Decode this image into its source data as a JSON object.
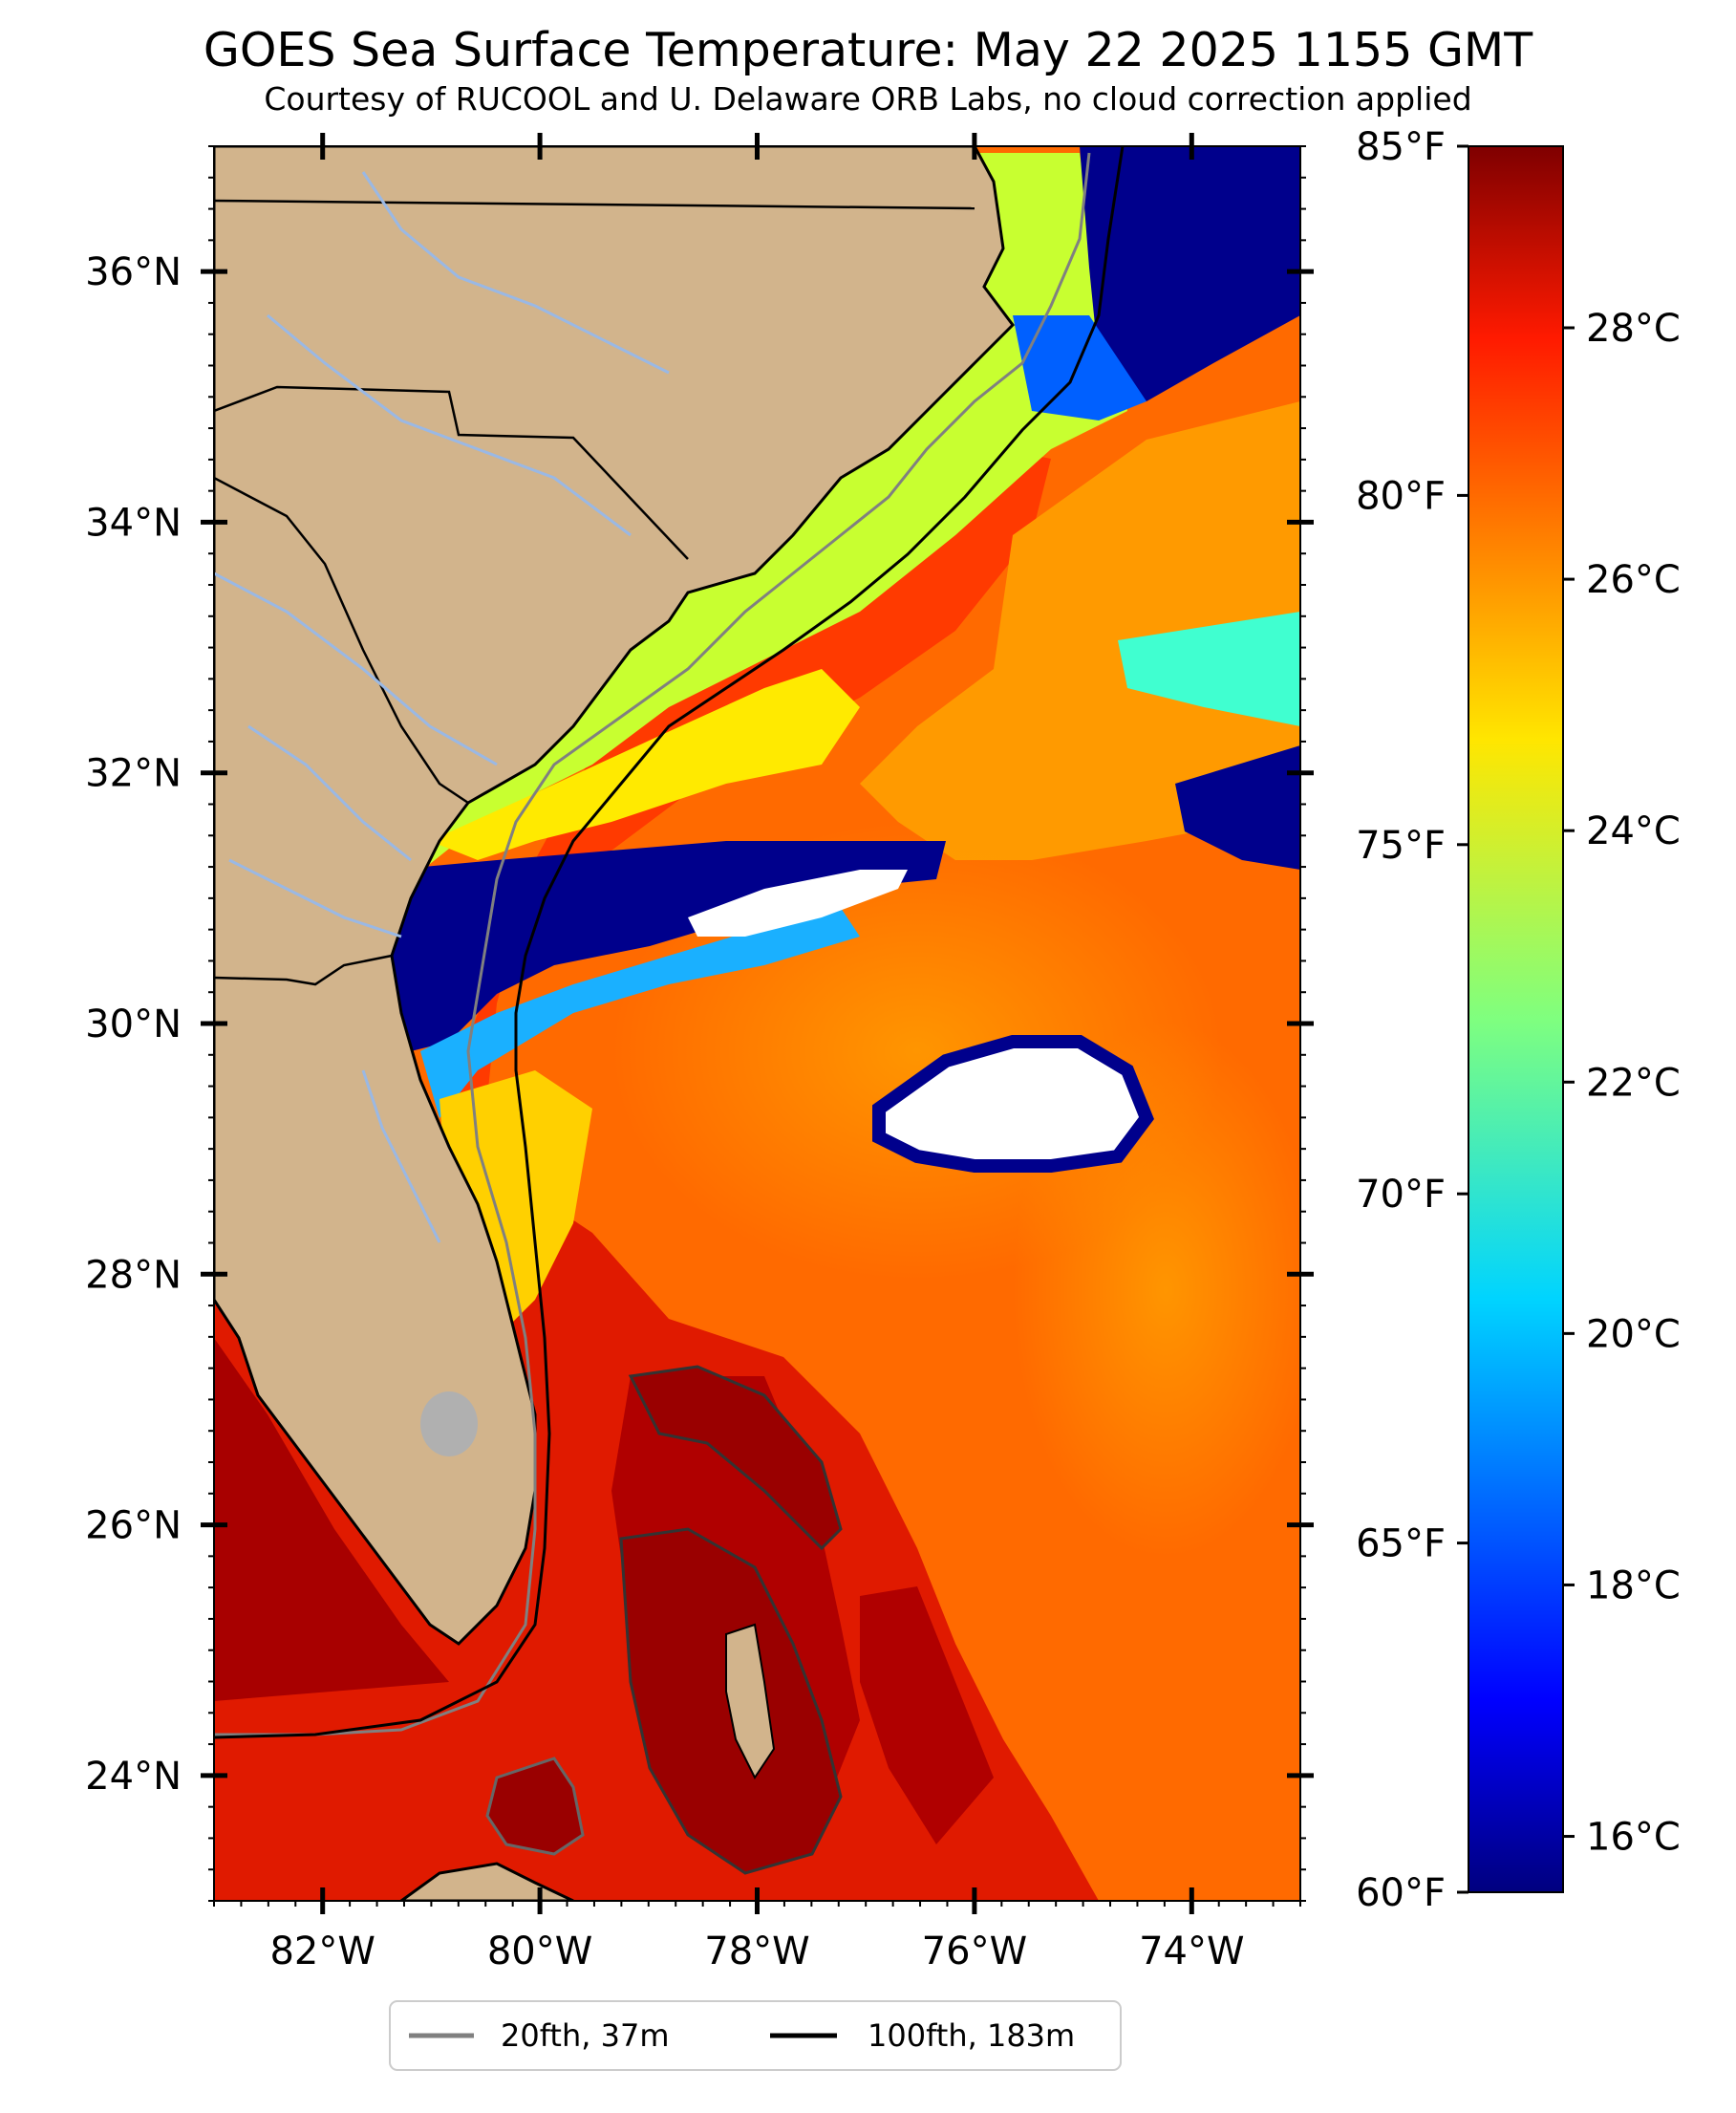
{
  "title": "GOES Sea Surface Temperature: May 22 2025 1155 GMT",
  "subtitle": "Courtesy of RUCOOL and U. Delaware ORB Labs, no cloud correction applied",
  "map": {
    "lon_range": [
      -83.0,
      -73.0
    ],
    "lat_range": [
      23.0,
      37.0
    ],
    "lat_ticks": [
      {
        "value": 36,
        "label": "36°N"
      },
      {
        "value": 34,
        "label": "34°N"
      },
      {
        "value": 32,
        "label": "32°N"
      },
      {
        "value": 30,
        "label": "30°N"
      },
      {
        "value": 28,
        "label": "28°N"
      },
      {
        "value": 26,
        "label": "26°N"
      },
      {
        "value": 24,
        "label": "24°N"
      }
    ],
    "lon_ticks": [
      {
        "value": -82,
        "label": "82°W"
      },
      {
        "value": -80,
        "label": "80°W"
      },
      {
        "value": -78,
        "label": "78°W"
      },
      {
        "value": -76,
        "label": "76°W"
      },
      {
        "value": -74,
        "label": "74°W"
      }
    ],
    "colors": {
      "land": "#d2b48c",
      "coast": "#000000",
      "rivers": "#9ab8e4",
      "lakes": "#b0b0b0",
      "no_data": "#ffffff"
    }
  },
  "colorbar": {
    "colormap": "jet",
    "range_f": [
      60,
      85
    ],
    "fahrenheit_ticks": [
      {
        "value": 85,
        "label": "85°F"
      },
      {
        "value": 80,
        "label": "80°F"
      },
      {
        "value": 75,
        "label": "75°F"
      },
      {
        "value": 70,
        "label": "70°F"
      },
      {
        "value": 65,
        "label": "65°F"
      },
      {
        "value": 60,
        "label": "60°F"
      }
    ],
    "celsius_ticks": [
      {
        "value": 28,
        "label": "28°C"
      },
      {
        "value": 26,
        "label": "26°C"
      },
      {
        "value": 24,
        "label": "24°C"
      },
      {
        "value": 22,
        "label": "22°C"
      },
      {
        "value": 20,
        "label": "20°C"
      },
      {
        "value": 18,
        "label": "18°C"
      },
      {
        "value": 16,
        "label": "16°C"
      }
    ]
  },
  "legend": {
    "placement": "bottom-center",
    "items": [
      {
        "label": "20fth, 37m",
        "color": "#808080"
      },
      {
        "label": "100fth, 183m",
        "color": "#000000"
      }
    ]
  }
}
